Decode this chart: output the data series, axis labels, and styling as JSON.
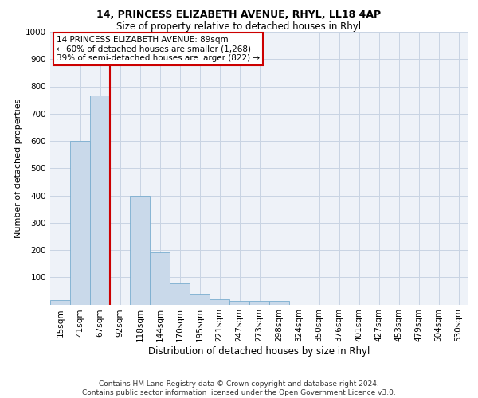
{
  "title1": "14, PRINCESS ELIZABETH AVENUE, RHYL, LL18 4AP",
  "title2": "Size of property relative to detached houses in Rhyl",
  "xlabel": "Distribution of detached houses by size in Rhyl",
  "ylabel": "Number of detached properties",
  "footer": "Contains HM Land Registry data © Crown copyright and database right 2024.\nContains public sector information licensed under the Open Government Licence v3.0.",
  "bin_labels": [
    "15sqm",
    "41sqm",
    "67sqm",
    "92sqm",
    "118sqm",
    "144sqm",
    "170sqm",
    "195sqm",
    "221sqm",
    "247sqm",
    "273sqm",
    "298sqm",
    "324sqm",
    "350sqm",
    "376sqm",
    "401sqm",
    "427sqm",
    "453sqm",
    "479sqm",
    "504sqm",
    "530sqm"
  ],
  "bar_values": [
    15,
    600,
    765,
    0,
    400,
    190,
    78,
    38,
    18,
    13,
    13,
    13,
    0,
    0,
    0,
    0,
    0,
    0,
    0,
    0,
    0
  ],
  "bar_color": "#c9d9ea",
  "bar_edge_color": "#7aadcf",
  "vline_index": 3,
  "vline_color": "#cc0000",
  "annotation_text": "14 PRINCESS ELIZABETH AVENUE: 89sqm\n← 60% of detached houses are smaller (1,268)\n39% of semi-detached houses are larger (822) →",
  "annotation_box_color": "#cc0000",
  "ylim": [
    0,
    1000
  ],
  "yticks": [
    0,
    100,
    200,
    300,
    400,
    500,
    600,
    700,
    800,
    900,
    1000
  ],
  "grid_color": "#c8d4e3",
  "bg_color": "#eef2f8",
  "title1_fontsize": 9,
  "title2_fontsize": 8.5,
  "ylabel_fontsize": 8,
  "xlabel_fontsize": 8.5,
  "tick_fontsize": 7.5,
  "footer_fontsize": 6.5,
  "ann_fontsize": 7.5
}
